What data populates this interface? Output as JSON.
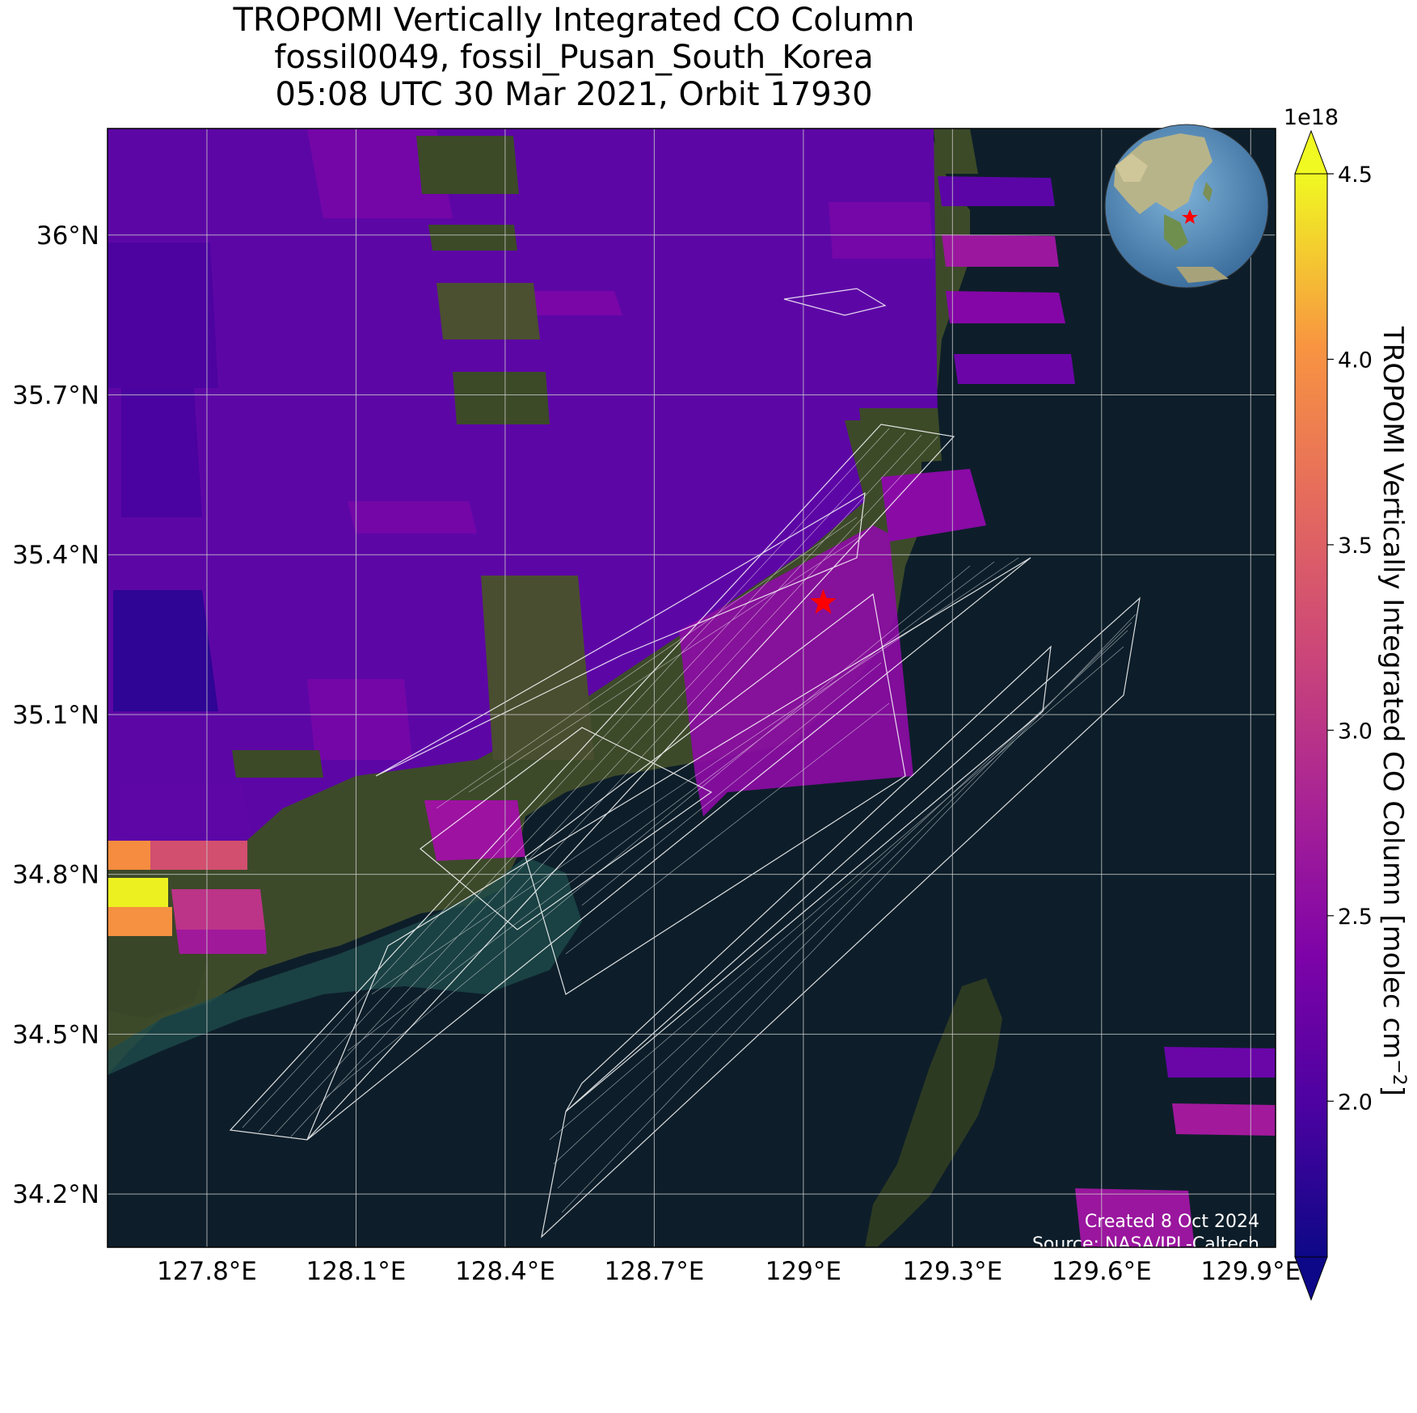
{
  "title": {
    "line1": "TROPOMI Vertically Integrated CO Column",
    "line2": "fossil0049, fossil_Pusan_South_Korea",
    "line3": "05:08 UTC 30 Mar 2021, Orbit 17930"
  },
  "map": {
    "lon_range": [
      127.6,
      129.95
    ],
    "lat_range": [
      34.1,
      36.2
    ],
    "lon_ticks": [
      {
        "value": 127.8,
        "label": "127.8°E"
      },
      {
        "value": 128.1,
        "label": "128.1°E"
      },
      {
        "value": 128.4,
        "label": "128.4°E"
      },
      {
        "value": 128.7,
        "label": "128.7°E"
      },
      {
        "value": 129.0,
        "label": "129°E"
      },
      {
        "value": 129.3,
        "label": "129.3°E"
      },
      {
        "value": 129.6,
        "label": "129.6°E"
      },
      {
        "value": 129.9,
        "label": "129.9°E"
      }
    ],
    "lat_ticks": [
      {
        "value": 36.0,
        "label": "36°N"
      },
      {
        "value": 35.7,
        "label": "35.7°N"
      },
      {
        "value": 35.4,
        "label": "35.4°N"
      },
      {
        "value": 35.1,
        "label": "35.1°N"
      },
      {
        "value": 34.8,
        "label": "34.8°N"
      },
      {
        "value": 34.5,
        "label": "34.5°N"
      },
      {
        "value": 34.2,
        "label": "34.2°N"
      }
    ],
    "grid": true,
    "source_marker": {
      "lon": 129.04,
      "lat": 35.31,
      "color": "#ff0000",
      "shape": "star"
    },
    "background": "satellite-imagery",
    "ocean_color": "#0d1e2a",
    "credit_line1": "Created 8 Oct 2024",
    "credit_line2": "Source: NASA/JPL-Caltech"
  },
  "inset_globe": {
    "description_icon": "globe-icon",
    "marker_color": "#ff0000"
  },
  "colorbar": {
    "label": "TROPOMI Vertically Integrated CO Column [molec cm",
    "label_superscript": "−2",
    "label_suffix": "]",
    "exponent": "1e18",
    "ticks": [
      {
        "value": 2.0,
        "label": "2.0"
      },
      {
        "value": 2.5,
        "label": "2.5"
      },
      {
        "value": 3.0,
        "label": "3.0"
      },
      {
        "value": 3.5,
        "label": "3.5"
      },
      {
        "value": 4.0,
        "label": "4.0"
      },
      {
        "value": 4.5,
        "label": "4.5"
      }
    ],
    "min": 1.58,
    "max": 4.5,
    "extend": "both",
    "colormap": "plasma"
  }
}
